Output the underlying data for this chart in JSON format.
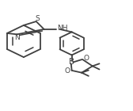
{
  "bg_color": "#ffffff",
  "line_color": "#404040",
  "line_width": 1.3,
  "text_color": "#404040",
  "font_size": 6.5,
  "xlim": [
    0,
    1
  ],
  "ylim": [
    0,
    1
  ]
}
